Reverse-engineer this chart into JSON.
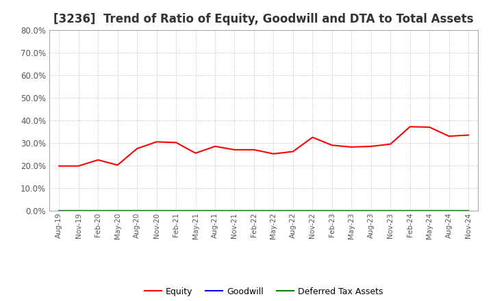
{
  "title": "[3236]  Trend of Ratio of Equity, Goodwill and DTA to Total Assets",
  "x_labels": [
    "Aug-19",
    "Nov-19",
    "Feb-20",
    "May-20",
    "Aug-20",
    "Nov-20",
    "Feb-21",
    "May-21",
    "Aug-21",
    "Nov-21",
    "Feb-22",
    "May-22",
    "Aug-22",
    "Nov-22",
    "Feb-23",
    "May-23",
    "Aug-23",
    "Nov-23",
    "Feb-24",
    "May-24",
    "Aug-24",
    "Nov-24"
  ],
  "equity": [
    19.8,
    19.8,
    22.5,
    20.2,
    27.5,
    30.5,
    30.2,
    25.5,
    28.5,
    27.0,
    27.0,
    25.2,
    26.2,
    32.5,
    29.0,
    28.2,
    28.5,
    29.5,
    37.2,
    37.0,
    33.0,
    33.5
  ],
  "goodwill": [
    0.0,
    0.0,
    0.0,
    0.0,
    0.0,
    0.0,
    0.0,
    0.0,
    0.0,
    0.0,
    0.0,
    0.0,
    0.0,
    0.0,
    0.0,
    0.0,
    0.0,
    0.0,
    0.0,
    0.0,
    0.0,
    0.0
  ],
  "dta": [
    0.0,
    0.0,
    0.0,
    0.0,
    0.0,
    0.0,
    0.0,
    0.0,
    0.0,
    0.0,
    0.0,
    0.0,
    0.0,
    0.0,
    0.0,
    0.0,
    0.0,
    0.0,
    0.0,
    0.0,
    0.0,
    0.0
  ],
  "equity_color": "#FF0000",
  "goodwill_color": "#0000FF",
  "dta_color": "#008000",
  "ylim": [
    0,
    80
  ],
  "yticks": [
    0,
    10,
    20,
    30,
    40,
    50,
    60,
    70,
    80
  ],
  "background_color": "#FFFFFF",
  "plot_bg_color": "#FFFFFF",
  "grid_color": "#BBBBBB",
  "title_fontsize": 12,
  "title_color": "#333333",
  "tick_label_color": "#555555",
  "legend_labels": [
    "Equity",
    "Goodwill",
    "Deferred Tax Assets"
  ]
}
